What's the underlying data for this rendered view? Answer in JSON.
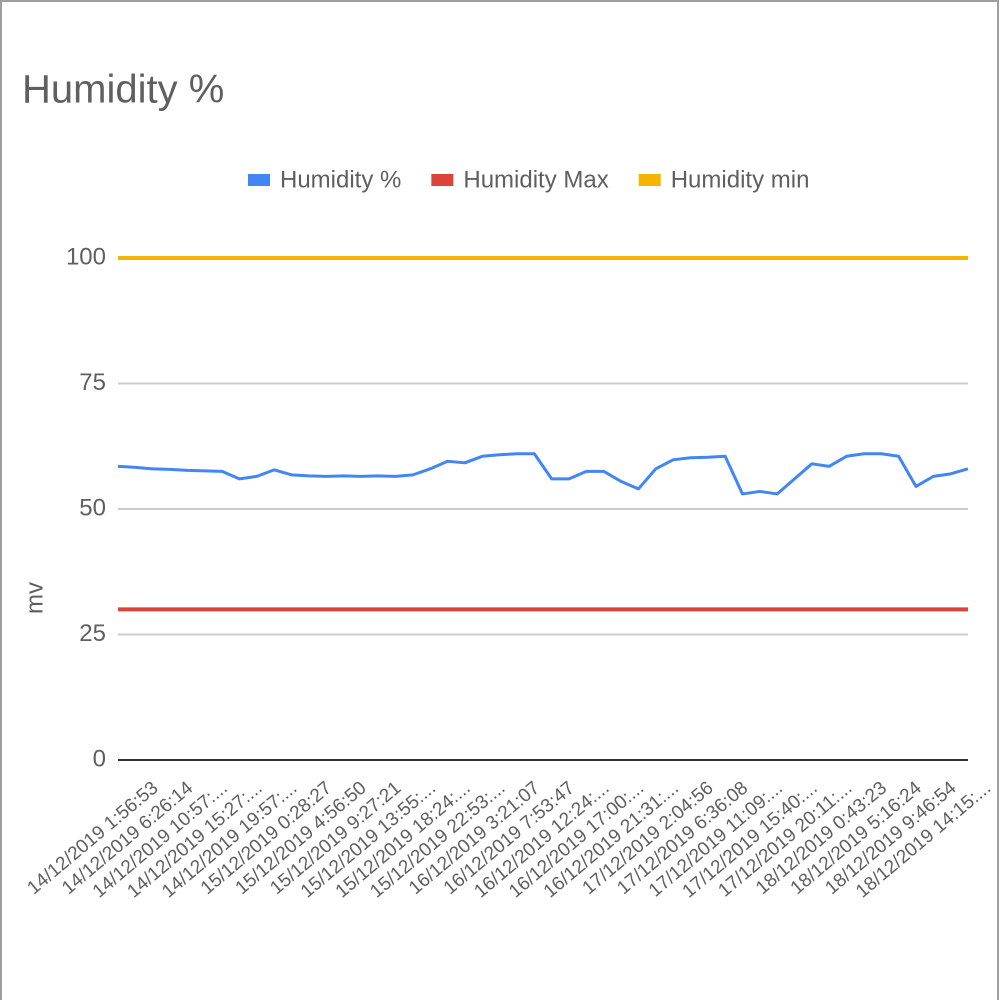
{
  "chart_data": {
    "type": "line",
    "title": "Humidity %",
    "ylabel": "mv",
    "categories": [
      "14/12/2019 1:56:53",
      null,
      "14/12/2019 6:26:14",
      null,
      "14/12/2019 10:57:...",
      null,
      "14/12/2019 15:27:...",
      null,
      "14/12/2019 19:57:...",
      null,
      "15/12/2019 0:28:27",
      null,
      "15/12/2019 4:56:50",
      null,
      "15/12/2019 9:27:21",
      null,
      "15/12/2019 13:55:...",
      null,
      "15/12/2019 18:24:...",
      null,
      "15/12/2019 22:53:...",
      null,
      "16/12/2019 3:21:07",
      null,
      "16/12/2019 7:53:47",
      null,
      "16/12/2019 12:24:...",
      null,
      "16/12/2019 17:00:...",
      null,
      "16/12/2019 21:31:...",
      null,
      "17/12/2019 2:04:56",
      null,
      "17/12/2019 6:36:08",
      null,
      "17/12/2019 11:09:...",
      null,
      "17/12/2019 15:40:...",
      null,
      "17/12/2019 20:11:...",
      null,
      "18/12/2019 0:43:23",
      null,
      "18/12/2019 5:16:24",
      null,
      "18/12/2019 9:46:54",
      null,
      "18/12/2019 14:15:...",
      null
    ],
    "series": [
      {
        "name": "Humidity %",
        "color": "#4285f4",
        "values": [
          58.5,
          58.3,
          58,
          57.9,
          57.7,
          57.6,
          57.5,
          56,
          56.5,
          57.8,
          56.8,
          56.6,
          56.5,
          56.6,
          56.5,
          56.6,
          56.5,
          56.8,
          58,
          59.5,
          59.2,
          60.5,
          60.8,
          61,
          61,
          56,
          56,
          57.5,
          57.5,
          55.5,
          54,
          58,
          59.8,
          60.2,
          60.3,
          60.5,
          53,
          53.5,
          53,
          56,
          59,
          58.5,
          60.5,
          61,
          61,
          60.5,
          54.5,
          56.5,
          57,
          58
        ]
      },
      {
        "name": "Humidity Max",
        "color": "#db4437",
        "values": [
          30,
          30,
          30,
          30,
          30,
          30,
          30,
          30,
          30,
          30,
          30,
          30,
          30,
          30,
          30,
          30,
          30,
          30,
          30,
          30,
          30,
          30,
          30,
          30,
          30,
          30,
          30,
          30,
          30,
          30,
          30,
          30,
          30,
          30,
          30,
          30,
          30,
          30,
          30,
          30,
          30,
          30,
          30,
          30,
          30,
          30,
          30,
          30,
          30,
          30
        ]
      },
      {
        "name": "Humidity min",
        "color": "#f4b400",
        "values": [
          100,
          100,
          100,
          100,
          100,
          100,
          100,
          100,
          100,
          100,
          100,
          100,
          100,
          100,
          100,
          100,
          100,
          100,
          100,
          100,
          100,
          100,
          100,
          100,
          100,
          100,
          100,
          100,
          100,
          100,
          100,
          100,
          100,
          100,
          100,
          100,
          100,
          100,
          100,
          100,
          100,
          100,
          100,
          100,
          100,
          100,
          100,
          100,
          100,
          100
        ]
      }
    ],
    "ylim": [
      0,
      100
    ],
    "yticks": [
      0,
      25,
      50,
      75,
      100
    ],
    "grid": true,
    "legend": "top"
  }
}
